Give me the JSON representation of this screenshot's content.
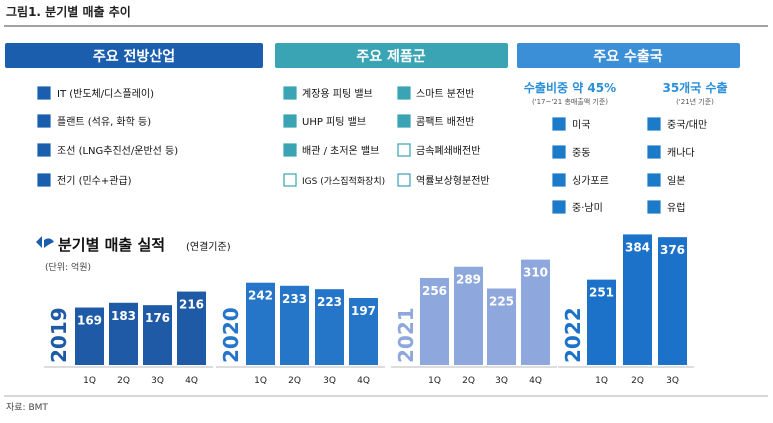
{
  "header": {
    "title": "그림1. 분기별 매출 추이"
  },
  "panels": [
    {
      "title": "주요 전방산업",
      "items": [
        "IT (반도체/디스플레이)",
        "플랜트 (석유, 화학 등)",
        "조선 (LNG추진선/운반선 등)",
        "전기 (민수+관급)"
      ]
    },
    {
      "title": "주요 제품군",
      "items": [
        "계장용 피팅 밸브",
        "UHP 피팅 밸브",
        "배관 / 초저온 밸브",
        "IGS (가스집적화장치)",
        "스마트 분전반",
        "콤팩트 배전반",
        "금속폐쇄배전반",
        "역률보상형분전반"
      ]
    },
    {
      "title": "주요 수출국",
      "left_title": "수출비중 약 45%",
      "left_note": "('17~'21 총매출액 기준)",
      "right_title": "35개국 수출",
      "right_note": "('21년 기준)",
      "left_items": [
        "미국",
        "중동",
        "싱가포르",
        "중·남미"
      ],
      "right_items": [
        "중국/대만",
        "캐나다",
        "일본",
        "유럽"
      ]
    }
  ],
  "chart_data": {
    "type": "bar",
    "title": "분기별 매출 실적",
    "title_note": "(연결기준)",
    "unit": "(단위: 억원)",
    "groups": [
      {
        "name": "2019",
        "color": "#1f5aa6",
        "categories": [
          "1Q",
          "2Q",
          "3Q",
          "4Q"
        ],
        "values": [
          169,
          183,
          176,
          216
        ]
      },
      {
        "name": "2020",
        "color": "#2576c8",
        "categories": [
          "1Q",
          "2Q",
          "3Q",
          "4Q"
        ],
        "values": [
          242,
          233,
          223,
          197
        ]
      },
      {
        "name": "2021",
        "color": "#8ea8de",
        "categories": [
          "1Q",
          "2Q",
          "3Q",
          "4Q"
        ],
        "values": [
          256,
          289,
          225,
          310
        ]
      },
      {
        "name": "2022",
        "color": "#1c72c9",
        "categories": [
          "1Q",
          "2Q",
          "3Q"
        ],
        "values": [
          251,
          384,
          376
        ]
      }
    ]
  },
  "source": "자료: BMT"
}
